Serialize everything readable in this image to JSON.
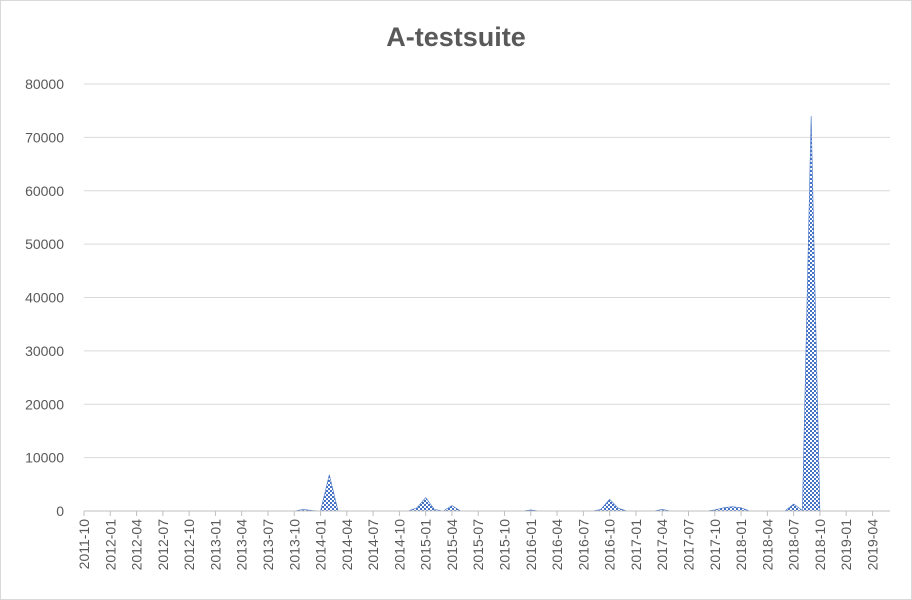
{
  "chart_data": {
    "type": "area",
    "title": "A-testsuite",
    "xlabel": "",
    "ylabel": "",
    "ylim": [
      0,
      80000
    ],
    "yticks": [
      0,
      10000,
      20000,
      30000,
      40000,
      50000,
      60000,
      70000,
      80000
    ],
    "x_tick_labels": [
      "2011-10",
      "2012-01",
      "2012-04",
      "2012-07",
      "2012-10",
      "2013-01",
      "2013-04",
      "2013-07",
      "2013-10",
      "2014-01",
      "2014-04",
      "2014-07",
      "2014-10",
      "2015-01",
      "2015-04",
      "2015-07",
      "2015-10",
      "2016-01",
      "2016-04",
      "2016-07",
      "2016-10",
      "2017-01",
      "2017-04",
      "2017-07",
      "2017-10",
      "2018-01",
      "2018-04",
      "2018-07",
      "2018-10",
      "2019-01",
      "2019-04"
    ],
    "grid": true,
    "legend": "none",
    "fill_color": "#4472c4",
    "series": [
      {
        "x": [
          "2011-10",
          "2011-11",
          "2011-12",
          "2012-01",
          "2012-02",
          "2012-03",
          "2012-04",
          "2012-05",
          "2012-06",
          "2012-07",
          "2012-08",
          "2012-09",
          "2012-10",
          "2012-11",
          "2012-12",
          "2013-01",
          "2013-02",
          "2013-03",
          "2013-04",
          "2013-05",
          "2013-06",
          "2013-07",
          "2013-08",
          "2013-09",
          "2013-10",
          "2013-11",
          "2013-12",
          "2014-01",
          "2014-02",
          "2014-03",
          "2014-04",
          "2014-05",
          "2014-06",
          "2014-07",
          "2014-08",
          "2014-09",
          "2014-10",
          "2014-11",
          "2014-12",
          "2015-01",
          "2015-02",
          "2015-03",
          "2015-04",
          "2015-05",
          "2015-06",
          "2015-07",
          "2015-08",
          "2015-09",
          "2015-10",
          "2015-11",
          "2015-12",
          "2016-01",
          "2016-02",
          "2016-03",
          "2016-04",
          "2016-05",
          "2016-06",
          "2016-07",
          "2016-08",
          "2016-09",
          "2016-10",
          "2016-11",
          "2016-12",
          "2017-01",
          "2017-02",
          "2017-03",
          "2017-04",
          "2017-05",
          "2017-06",
          "2017-07",
          "2017-08",
          "2017-09",
          "2017-10",
          "2017-11",
          "2017-12",
          "2018-01",
          "2018-02",
          "2018-03",
          "2018-04",
          "2018-05",
          "2018-06",
          "2018-07",
          "2018-08",
          "2018-09",
          "2018-10",
          "2018-11",
          "2018-12",
          "2019-01",
          "2019-02",
          "2019-03",
          "2019-04",
          "2019-05",
          "2019-06"
        ],
        "y": [
          0,
          0,
          0,
          0,
          0,
          0,
          0,
          0,
          0,
          0,
          0,
          0,
          0,
          0,
          0,
          0,
          0,
          0,
          0,
          0,
          0,
          0,
          0,
          0,
          0,
          300,
          100,
          0,
          6800,
          0,
          0,
          0,
          0,
          0,
          0,
          0,
          0,
          0,
          600,
          2500,
          300,
          0,
          1000,
          0,
          0,
          0,
          0,
          0,
          0,
          0,
          0,
          200,
          0,
          0,
          0,
          0,
          0,
          0,
          0,
          300,
          2200,
          500,
          0,
          0,
          0,
          0,
          300,
          0,
          0,
          0,
          0,
          0,
          200,
          600,
          800,
          600,
          0,
          0,
          0,
          0,
          0,
          1300,
          100,
          74000,
          0,
          0,
          0,
          0,
          0,
          0,
          0,
          0,
          0
        ]
      }
    ]
  }
}
